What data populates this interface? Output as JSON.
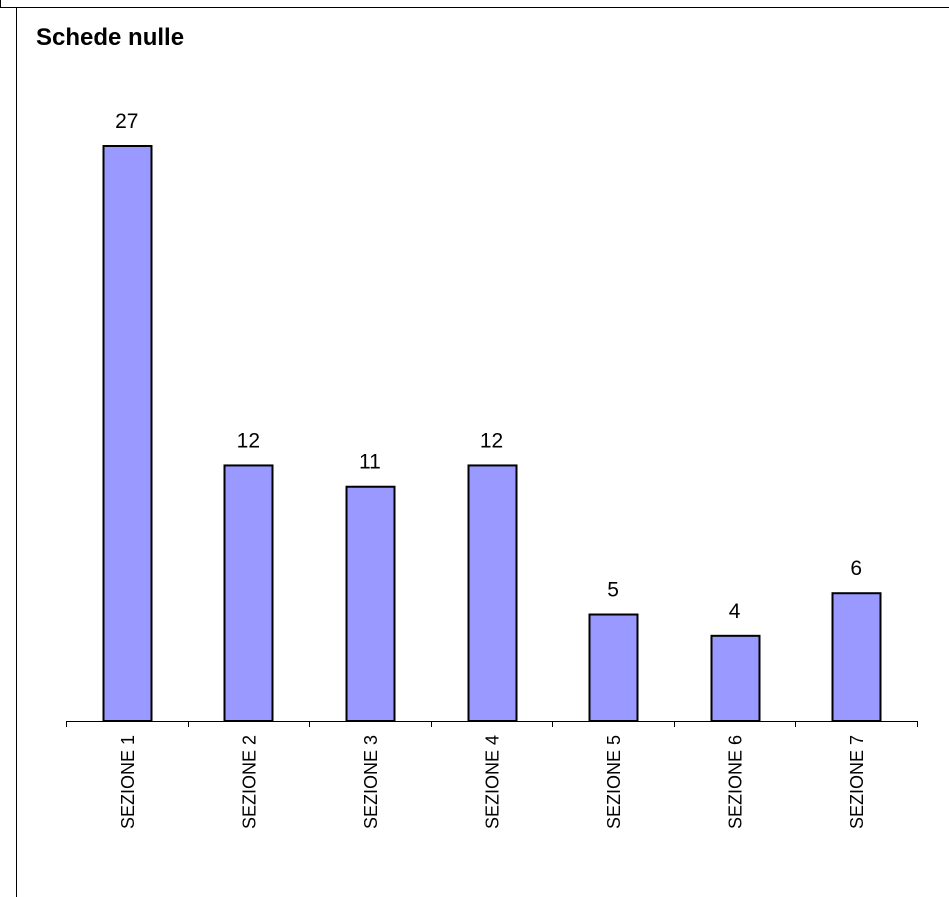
{
  "chart_data": {
    "type": "bar",
    "title": "Schede nulle",
    "xlabel": "",
    "ylabel": "",
    "categories": [
      "SEZIONE 1",
      "SEZIONE 2",
      "SEZIONE 3",
      "SEZIONE 4",
      "SEZIONE 5",
      "SEZIONE 6",
      "SEZIONE 7"
    ],
    "values": [
      27,
      12,
      11,
      12,
      5,
      4,
      6
    ],
    "ylim": [
      0,
      27
    ],
    "grid": false,
    "legend": "none",
    "colors": {
      "bar_fill": "#9999ff",
      "bar_stroke": "#000000"
    }
  }
}
